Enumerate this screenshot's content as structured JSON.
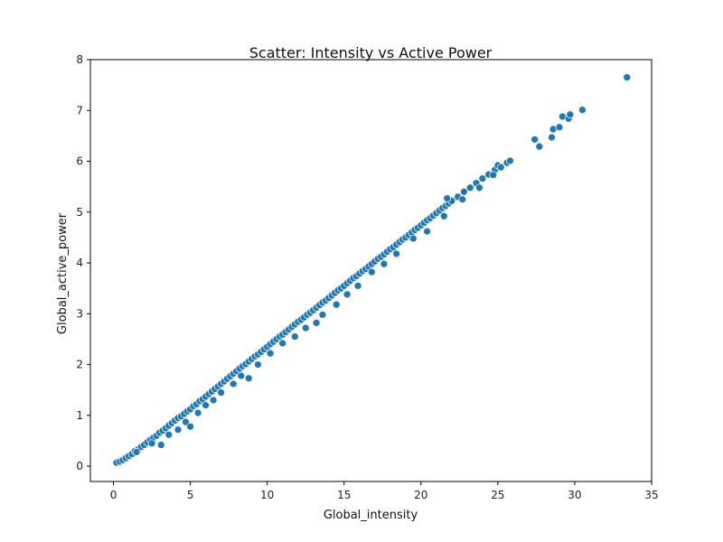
{
  "chart_data": {
    "type": "scatter",
    "title": "Scatter: Intensity vs Active Power",
    "xlabel": "Global_intensity",
    "ylabel": "Global_active_power",
    "xlim": [
      -1.5,
      35
    ],
    "ylim": [
      -0.3,
      8
    ],
    "xticks": [
      0,
      5,
      10,
      15,
      20,
      25,
      30,
      35
    ],
    "yticks": [
      0,
      1,
      2,
      3,
      4,
      5,
      6,
      7,
      8
    ],
    "grid": false,
    "legend": "none",
    "marker_color": "#1f77b4",
    "marker_edge_color": "#ffffff",
    "series": [
      {
        "points": [
          [
            0.2,
            0.07
          ],
          [
            0.4,
            0.09
          ],
          [
            0.6,
            0.12
          ],
          [
            0.8,
            0.16
          ],
          [
            1.0,
            0.2
          ],
          [
            1.2,
            0.24
          ],
          [
            1.4,
            0.3
          ],
          [
            1.6,
            0.33
          ],
          [
            1.8,
            0.38
          ],
          [
            2.0,
            0.42
          ],
          [
            2.2,
            0.47
          ],
          [
            2.4,
            0.52
          ],
          [
            2.6,
            0.56
          ],
          [
            2.8,
            0.6
          ],
          [
            3.0,
            0.66
          ],
          [
            3.2,
            0.7
          ],
          [
            3.4,
            0.75
          ],
          [
            3.6,
            0.8
          ],
          [
            3.8,
            0.85
          ],
          [
            4.0,
            0.9
          ],
          [
            4.2,
            0.95
          ],
          [
            4.4,
            0.98
          ],
          [
            4.6,
            1.03
          ],
          [
            4.8,
            1.08
          ],
          [
            5.0,
            1.12
          ],
          [
            5.2,
            1.18
          ],
          [
            5.4,
            1.22
          ],
          [
            5.6,
            1.28
          ],
          [
            5.8,
            1.32
          ],
          [
            6.0,
            1.37
          ],
          [
            6.2,
            1.42
          ],
          [
            6.4,
            1.47
          ],
          [
            6.6,
            1.52
          ],
          [
            6.8,
            1.57
          ],
          [
            7.0,
            1.62
          ],
          [
            7.2,
            1.67
          ],
          [
            7.4,
            1.72
          ],
          [
            7.6,
            1.77
          ],
          [
            7.8,
            1.82
          ],
          [
            8.0,
            1.87
          ],
          [
            8.2,
            1.92
          ],
          [
            8.4,
            1.97
          ],
          [
            8.6,
            2.01
          ],
          [
            8.8,
            2.06
          ],
          [
            9.0,
            2.11
          ],
          [
            9.2,
            2.16
          ],
          [
            9.4,
            2.2
          ],
          [
            9.6,
            2.25
          ],
          [
            9.8,
            2.3
          ],
          [
            10.0,
            2.35
          ],
          [
            10.2,
            2.4
          ],
          [
            10.4,
            2.45
          ],
          [
            10.6,
            2.5
          ],
          [
            10.8,
            2.55
          ],
          [
            11.0,
            2.59
          ],
          [
            11.2,
            2.64
          ],
          [
            11.4,
            2.69
          ],
          [
            11.6,
            2.74
          ],
          [
            11.8,
            2.79
          ],
          [
            12.0,
            2.84
          ],
          [
            12.2,
            2.88
          ],
          [
            12.4,
            2.93
          ],
          [
            12.6,
            2.98
          ],
          [
            12.8,
            3.02
          ],
          [
            13.0,
            3.07
          ],
          [
            13.2,
            3.12
          ],
          [
            13.4,
            3.17
          ],
          [
            13.6,
            3.22
          ],
          [
            13.8,
            3.26
          ],
          [
            14.0,
            3.31
          ],
          [
            14.2,
            3.36
          ],
          [
            14.4,
            3.41
          ],
          [
            14.6,
            3.46
          ],
          [
            14.8,
            3.5
          ],
          [
            15.0,
            3.55
          ],
          [
            15.2,
            3.6
          ],
          [
            15.4,
            3.65
          ],
          [
            15.6,
            3.7
          ],
          [
            15.8,
            3.74
          ],
          [
            16.0,
            3.79
          ],
          [
            16.2,
            3.84
          ],
          [
            16.4,
            3.88
          ],
          [
            16.6,
            3.93
          ],
          [
            16.8,
            3.98
          ],
          [
            17.0,
            4.03
          ],
          [
            17.2,
            4.08
          ],
          [
            17.4,
            4.12
          ],
          [
            17.6,
            4.17
          ],
          [
            17.8,
            4.22
          ],
          [
            18.0,
            4.27
          ],
          [
            18.2,
            4.31
          ],
          [
            18.4,
            4.36
          ],
          [
            18.6,
            4.41
          ],
          [
            18.8,
            4.46
          ],
          [
            19.0,
            4.5
          ],
          [
            19.2,
            4.55
          ],
          [
            19.4,
            4.6
          ],
          [
            19.6,
            4.65
          ],
          [
            19.8,
            4.69
          ],
          [
            20.0,
            4.74
          ],
          [
            20.2,
            4.79
          ],
          [
            20.4,
            4.84
          ],
          [
            20.6,
            4.88
          ],
          [
            20.8,
            4.93
          ],
          [
            21.0,
            4.98
          ],
          [
            21.2,
            5.03
          ],
          [
            21.4,
            5.08
          ],
          [
            21.6,
            5.12
          ],
          [
            21.8,
            5.17
          ],
          [
            22.0,
            5.22
          ],
          [
            22.4,
            5.3
          ],
          [
            22.8,
            5.4
          ],
          [
            23.2,
            5.48
          ],
          [
            23.6,
            5.57
          ],
          [
            24.0,
            5.66
          ],
          [
            24.4,
            5.74
          ],
          [
            24.8,
            5.83
          ],
          [
            25.2,
            5.9
          ],
          [
            25.6,
            5.97
          ],
          [
            25.8,
            6.01
          ],
          [
            1.5,
            0.28
          ],
          [
            2.5,
            0.45
          ],
          [
            3.1,
            0.42
          ],
          [
            3.6,
            0.62
          ],
          [
            4.2,
            0.72
          ],
          [
            4.7,
            0.87
          ],
          [
            5.0,
            0.78
          ],
          [
            5.5,
            1.05
          ],
          [
            6.0,
            1.2
          ],
          [
            6.5,
            1.3
          ],
          [
            7.0,
            1.45
          ],
          [
            7.8,
            1.62
          ],
          [
            8.3,
            1.78
          ],
          [
            8.8,
            1.73
          ],
          [
            9.4,
            2.0
          ],
          [
            10.2,
            2.22
          ],
          [
            11.0,
            2.42
          ],
          [
            11.8,
            2.55
          ],
          [
            12.5,
            2.72
          ],
          [
            13.2,
            2.82
          ],
          [
            13.6,
            2.98
          ],
          [
            14.5,
            3.18
          ],
          [
            15.2,
            3.38
          ],
          [
            15.9,
            3.55
          ],
          [
            16.8,
            3.82
          ],
          [
            17.6,
            3.98
          ],
          [
            18.4,
            4.18
          ],
          [
            19.5,
            4.48
          ],
          [
            20.4,
            4.62
          ],
          [
            21.5,
            4.92
          ],
          [
            21.7,
            5.27
          ],
          [
            22.7,
            5.25
          ],
          [
            23.8,
            5.48
          ],
          [
            24.7,
            5.73
          ],
          [
            25.0,
            5.92
          ],
          [
            25.2,
            5.88
          ],
          [
            27.4,
            6.43
          ],
          [
            27.7,
            6.29
          ],
          [
            28.5,
            6.47
          ],
          [
            28.6,
            6.63
          ],
          [
            29.0,
            6.67
          ],
          [
            29.2,
            6.88
          ],
          [
            29.6,
            6.84
          ],
          [
            29.7,
            6.92
          ],
          [
            30.5,
            7.01
          ],
          [
            33.4,
            7.65
          ]
        ]
      }
    ]
  }
}
